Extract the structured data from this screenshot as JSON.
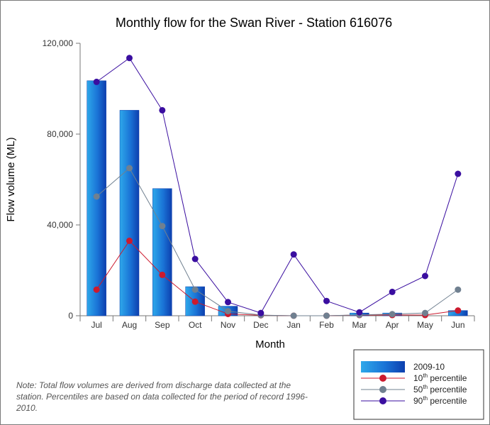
{
  "chart_data": {
    "type": "bar",
    "title": "Monthly flow for the Swan River - Station 616076",
    "xlabel": "Month",
    "ylabel": "Flow volume (ML)",
    "ylim": [
      0,
      120000
    ],
    "yticks": [
      0,
      40000,
      80000,
      120000
    ],
    "ytick_labels": [
      "0",
      "40,000",
      "80,000",
      "120,000"
    ],
    "categories": [
      "Jul",
      "Aug",
      "Sep",
      "Oct",
      "Nov",
      "Dec",
      "Jan",
      "Feb",
      "Mar",
      "Apr",
      "May",
      "Jun"
    ],
    "grid": false,
    "legend_position": "bottom-right",
    "series": [
      {
        "name": "2009-10",
        "kind": "bar",
        "color": "#1a5fcc",
        "values": [
          103500,
          90500,
          56000,
          12800,
          4200,
          0,
          0,
          0,
          1200,
          1200,
          0,
          2300
        ]
      },
      {
        "name": "10th percentile",
        "kind": "line",
        "color": "#cc1a2e",
        "values": [
          11500,
          33000,
          18000,
          6200,
          800,
          200,
          0,
          0,
          300,
          300,
          300,
          2300
        ]
      },
      {
        "name": "50th percentile",
        "kind": "line",
        "color": "#708090",
        "values": [
          52500,
          65000,
          39500,
          11500,
          2000,
          300,
          0,
          0,
          400,
          700,
          1200,
          11500
        ]
      },
      {
        "name": "90th percentile",
        "kind": "line",
        "color": "#3a0ea0",
        "values": [
          103000,
          113500,
          90500,
          25000,
          6000,
          1200,
          27000,
          6500,
          1500,
          10500,
          17500,
          62500
        ]
      }
    ],
    "legend": [
      {
        "base": "2009-10",
        "sup": ""
      },
      {
        "base": "10",
        "sup": "th",
        "rest": " percentile"
      },
      {
        "base": "50",
        "sup": "th",
        "rest": " percentile"
      },
      {
        "base": "90",
        "sup": "th",
        "rest": " percentile"
      }
    ]
  },
  "note": "Note: Total flow volumes are derived from discharge data collected at the station. Percentiles are based on data collected for the period of record 1996-2010."
}
